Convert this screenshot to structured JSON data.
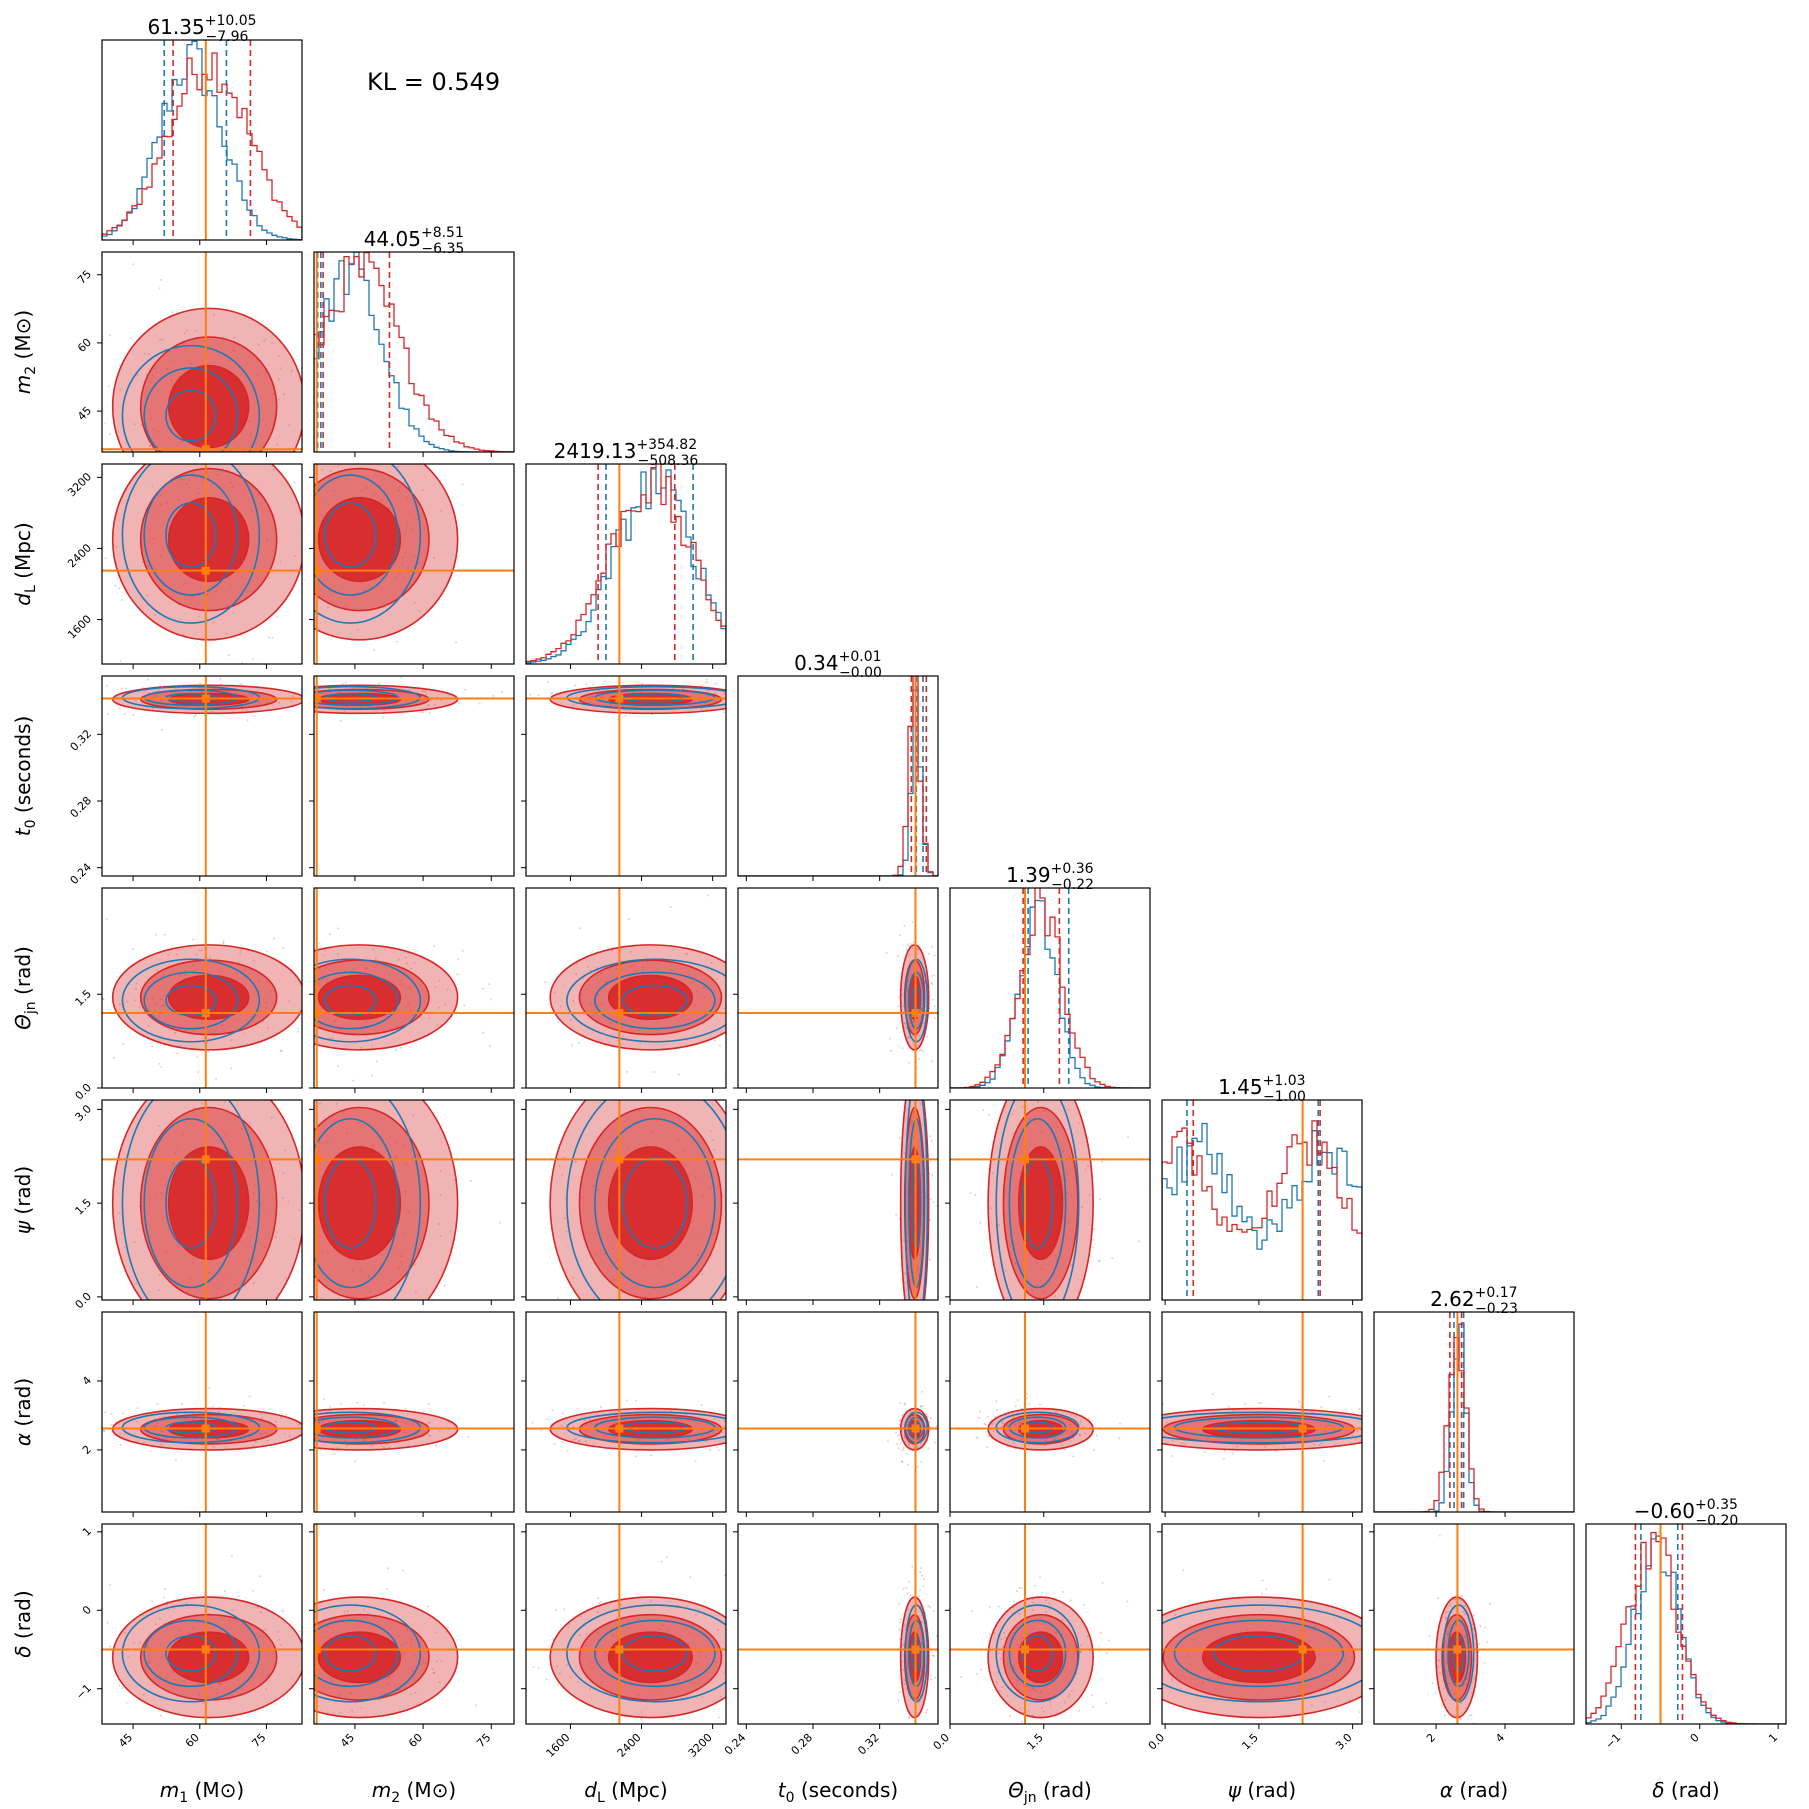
{
  "chart_data": {
    "type": "corner",
    "annotation": "KL = 0.549",
    "colors": {
      "blue": "#1f77b4",
      "red": "#d62728",
      "truth": "#ff7f0e"
    },
    "parameters": [
      {
        "key": "m1",
        "label_main": "m",
        "label_sub": "1",
        "label_unit": " (M⊙)",
        "range": [
          38,
          83
        ],
        "ticks": [
          45,
          60,
          75
        ],
        "tick_labels": [
          "45",
          "60",
          "75"
        ],
        "truth": 61.35,
        "title_median": "61.35",
        "title_plus": "+10.05",
        "title_minus": "−7.96",
        "blue_quantiles": [
          52,
          61.35,
          66
        ],
        "red_quantiles": [
          54,
          61.35,
          71.4
        ]
      },
      {
        "key": "m2",
        "label_main": "m",
        "label_sub": "2",
        "label_unit": " (M⊙)",
        "range": [
          36,
          80
        ],
        "ticks": [
          45,
          60,
          75
        ],
        "tick_labels": [
          "45",
          "60",
          "75"
        ],
        "truth": 36.6,
        "title_median": "44.05",
        "title_plus": "+8.51",
        "title_minus": "−6.35",
        "blue_quantiles": [
          37.5,
          48,
          36.8
        ],
        "red_quantiles": [
          38,
          44.05,
          52.6
        ]
      },
      {
        "key": "dL",
        "label_main": "d",
        "label_sub": "L",
        "label_unit": " (Mpc)",
        "range": [
          1100,
          3350
        ],
        "ticks": [
          1600,
          2400,
          3200
        ],
        "tick_labels": [
          "1600",
          "2400",
          "3200"
        ],
        "truth": 2150,
        "title_median": "2419.13",
        "title_plus": "+354.82",
        "title_minus": "−508.36",
        "blue_quantiles": [
          2000,
          2150,
          2980
        ],
        "red_quantiles": [
          1911,
          2150,
          2774
        ]
      },
      {
        "key": "t0",
        "label_main": "t",
        "label_sub": "0",
        "label_unit": " (seconds)",
        "range": [
          0.235,
          0.355
        ],
        "ticks": [
          0.24,
          0.28,
          0.32
        ],
        "tick_labels": [
          "0.24",
          "0.28",
          "0.32"
        ],
        "truth": 0.3415,
        "title_median": "0.34",
        "title_plus": "+0.01",
        "title_minus": "−0.00",
        "blue_quantiles": [
          0.342,
          0.3415,
          0.346
        ],
        "red_quantiles": [
          0.339,
          0.3415,
          0.348
        ]
      },
      {
        "key": "theta",
        "label_main": "Θ",
        "label_sub": "jn",
        "label_unit": " (rad)",
        "range": [
          0.0,
          3.2
        ],
        "ticks": [
          0.0,
          1.5
        ],
        "tick_labels": [
          "0.0",
          "1.5"
        ],
        "truth": 1.2,
        "title_median": "1.39",
        "title_plus": "+0.36",
        "title_minus": "−0.22",
        "blue_quantiles": [
          1.25,
          1.2,
          1.9
        ],
        "red_quantiles": [
          1.17,
          1.2,
          1.75
        ]
      },
      {
        "key": "psi",
        "label_main": "ψ",
        "label_sub": "",
        "label_unit": " (rad)",
        "range": [
          -0.05,
          3.15
        ],
        "ticks": [
          0.0,
          1.5,
          3.0
        ],
        "tick_labels": [
          "0.0",
          "1.5",
          "3.0"
        ],
        "truth": 2.2,
        "title_median": "1.45",
        "title_plus": "+1.03",
        "title_minus": "−1.00",
        "blue_quantiles": [
          0.35,
          2.2,
          2.45
        ],
        "red_quantiles": [
          0.45,
          2.2,
          2.48
        ]
      },
      {
        "key": "alpha",
        "label_main": "α",
        "label_sub": "",
        "label_unit": " (rad)",
        "range": [
          0.2,
          6.0
        ],
        "ticks": [
          2,
          4
        ],
        "tick_labels": [
          "2",
          "4"
        ],
        "truth": 2.62,
        "title_median": "2.62",
        "title_plus": "+0.17",
        "title_minus": "−0.23",
        "blue_quantiles": [
          2.52,
          2.62,
          2.8
        ],
        "red_quantiles": [
          2.4,
          2.62,
          2.74
        ]
      },
      {
        "key": "delta",
        "label_main": "δ",
        "label_sub": "",
        "label_unit": " (rad)",
        "range": [
          -1.45,
          1.1
        ],
        "ticks": [
          -1,
          0,
          1
        ],
        "tick_labels": [
          "−1",
          "0",
          "1"
        ],
        "truth": -0.5,
        "title_median": "−0.60",
        "title_plus": "+0.35",
        "title_minus": "−0.20",
        "blue_quantiles": [
          -0.75,
          -0.5,
          -0.28
        ],
        "red_quantiles": [
          -0.82,
          -0.5,
          -0.22
        ]
      }
    ],
    "posterior": {
      "red": {
        "mean": [
          62,
          46,
          2500,
          0.341,
          1.45,
          1.5,
          2.6,
          -0.6
        ],
        "sd": [
          9,
          9,
          470,
          0.0035,
          0.35,
          0.9,
          0.25,
          0.32
        ]
      },
      "blue": {
        "mean": [
          58,
          44,
          2550,
          0.342,
          1.4,
          1.5,
          2.65,
          -0.55
        ],
        "sd": [
          7,
          7,
          450,
          0.003,
          0.3,
          0.9,
          0.2,
          0.28
        ]
      }
    }
  }
}
